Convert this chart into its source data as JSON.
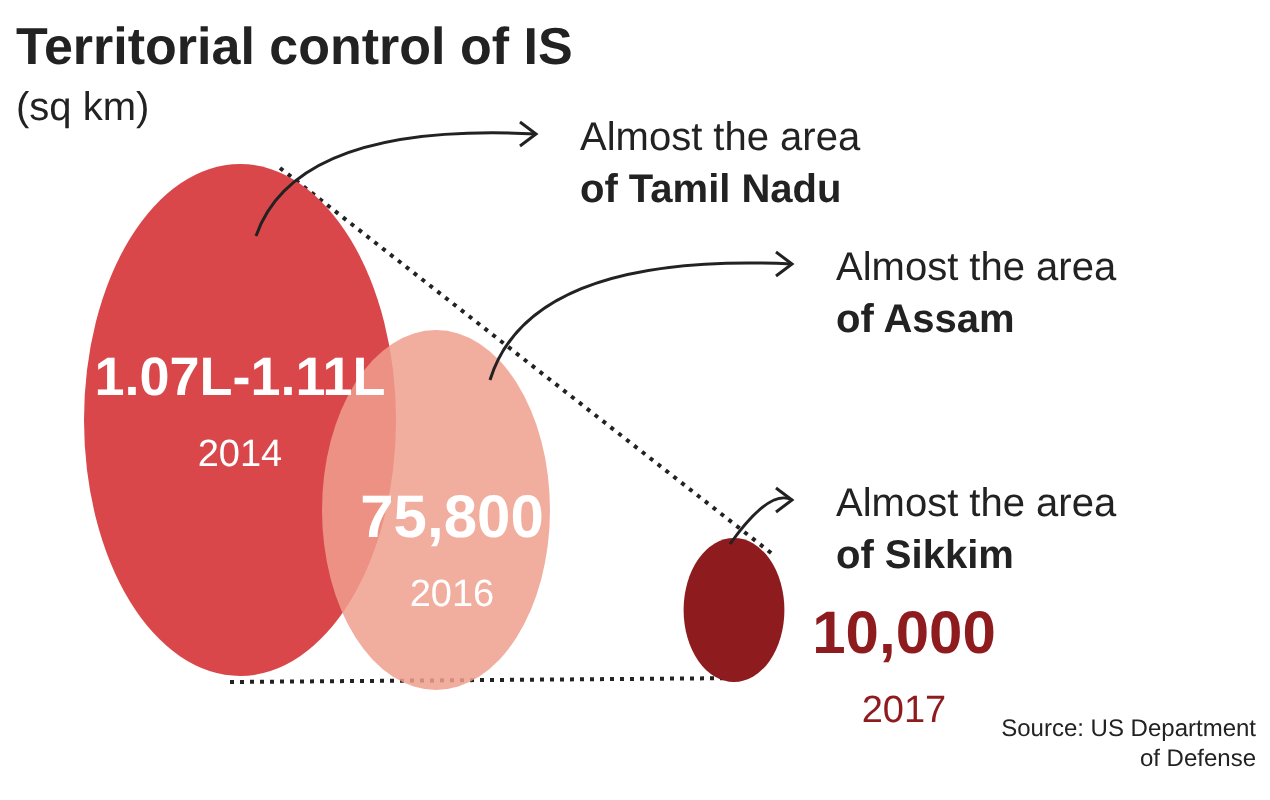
{
  "chart_data": {
    "type": "other",
    "title": "Territorial control of IS",
    "subtitle": "(sq km)",
    "categories": [
      "2014",
      "2016",
      "2017"
    ],
    "values": [
      null,
      75800,
      10000
    ],
    "value_labels": [
      "1.07L-1.11L",
      "75,800",
      "10,000"
    ],
    "colors": [
      "#d9474a",
      "#ee9f8d",
      "#8e1b1e"
    ],
    "annotations": [
      "Almost the area\nof Tamil Nadu",
      "Almost the area\nof Assam",
      "Almost the area\nof Sikkim",
      "Source: US Department\nof Defense"
    ]
  }
}
